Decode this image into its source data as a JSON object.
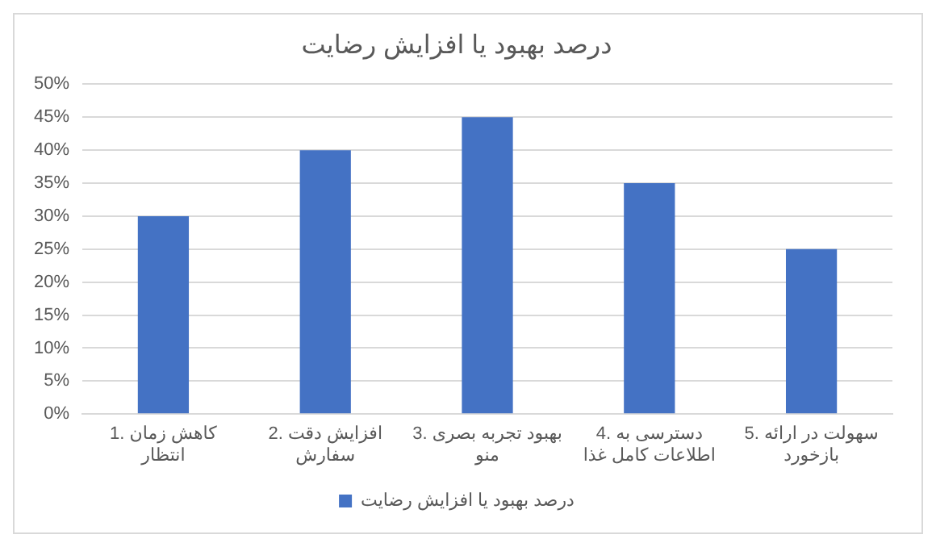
{
  "chart_data": {
    "type": "bar",
    "title": "درصد بهبود یا افزایش رضایت",
    "categories": [
      "1. کاهش زمان انتظار",
      "2. افزایش دقت سفارش",
      "3. بهبود تجربه بصری منو",
      "4. دسترسی به اطلاعات کامل غذا",
      "5. سهولت در ارائه بازخورد"
    ],
    "series": [
      {
        "name": "درصد بهبود یا افزایش رضایت",
        "color": "#4472c4",
        "values": [
          30,
          40,
          45,
          35,
          25
        ]
      }
    ],
    "ylim": [
      0,
      50
    ],
    "yticks": [
      {
        "value": 0,
        "label": "0%"
      },
      {
        "value": 5,
        "label": "5%"
      },
      {
        "value": 10,
        "label": "10%"
      },
      {
        "value": 15,
        "label": "15%"
      },
      {
        "value": 20,
        "label": "20%"
      },
      {
        "value": 25,
        "label": "25%"
      },
      {
        "value": 30,
        "label": "30%"
      },
      {
        "value": 35,
        "label": "35%"
      },
      {
        "value": 40,
        "label": "40%"
      },
      {
        "value": 45,
        "label": "45%"
      },
      {
        "value": 50,
        "label": "50%"
      }
    ],
    "grid": "y",
    "legend": "bottom"
  }
}
